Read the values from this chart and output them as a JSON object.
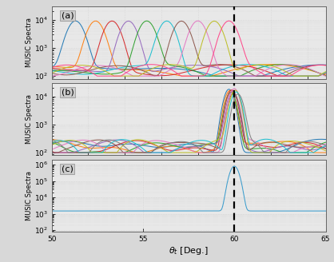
{
  "xlim": [
    50,
    65
  ],
  "ylim_a": [
    80,
    30000
  ],
  "ylim_b": [
    80,
    30000
  ],
  "ylim_c": [
    80,
    2000000
  ],
  "dashed_line_x": 60,
  "xlabel": "$\\theta_t$ [Deg.]",
  "ylabel": "MUSIC Spectra",
  "panel_labels": [
    "(a)",
    "(b)",
    "(c)"
  ],
  "bg_color": "#d8d8d8",
  "panel_bg": "#e8e8e8",
  "peak_centers_a": [
    51.3,
    52.4,
    53.3,
    54.2,
    55.2,
    56.3,
    57.1,
    58.0,
    58.9,
    59.7
  ],
  "colors_a": [
    "#1f77b4",
    "#ff7f0e",
    "#d62728",
    "#9467bd",
    "#2ca02c",
    "#17becf",
    "#8c564b",
    "#e377c2",
    "#bcbd22",
    "#ff4488"
  ],
  "colors_b": [
    "#1f77b4",
    "#ff7f0e",
    "#2ca02c",
    "#d62728",
    "#9467bd",
    "#8c564b",
    "#e377c2",
    "#bcbd22",
    "#17becf",
    "#7f7f7f"
  ],
  "color_c": "#3399cc",
  "yticks_ab": [
    100,
    1000,
    10000
  ],
  "ytick_labels_ab": [
    "$10^2$",
    "$10^3$",
    "$10^4$"
  ],
  "yticks_c": [
    100,
    10000
  ],
  "ytick_labels_c": [
    "$10^2$",
    "$10^4$"
  ],
  "xticks": [
    50,
    55,
    60,
    65
  ]
}
